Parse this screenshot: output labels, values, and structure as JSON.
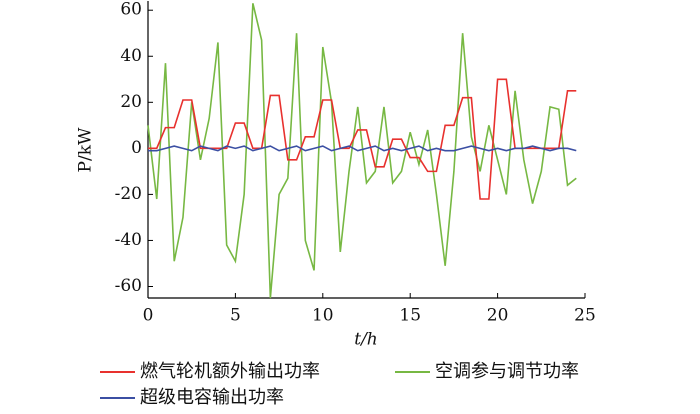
{
  "chart_data": {
    "type": "line",
    "x_label": "t/h",
    "y_label": "P/kW",
    "x": [
      0,
      0.5,
      1,
      1.5,
      2,
      2.5,
      3,
      3.5,
      4,
      4.5,
      5,
      5.5,
      6,
      6.5,
      7,
      7.5,
      8,
      8.5,
      9,
      9.5,
      10,
      10.5,
      11,
      11.5,
      12,
      12.5,
      13,
      13.5,
      14,
      14.5,
      15,
      15.5,
      16,
      16.5,
      17,
      17.5,
      18,
      18.5,
      19,
      19.5,
      20,
      20.5,
      21,
      21.5,
      22,
      22.5,
      23,
      23.5,
      24,
      24.5
    ],
    "series": [
      {
        "name": "燃气轮机额外输出功率",
        "color": "#e8312e",
        "values": [
          0,
          0,
          9,
          9,
          21,
          21,
          0,
          0,
          0,
          0,
          11,
          11,
          0,
          0,
          23,
          23,
          -5,
          -5,
          5,
          5,
          21,
          21,
          0,
          0,
          8,
          8,
          -8,
          -8,
          4,
          4,
          -4,
          -4,
          -10,
          -10,
          10,
          10,
          22,
          22,
          -22,
          -22,
          30,
          30,
          0,
          0,
          0,
          0,
          0,
          0,
          25,
          25
        ]
      },
      {
        "name": "空调参与调节功率",
        "color": "#77b843",
        "values": [
          10,
          -22,
          37,
          -49,
          -30,
          20,
          -5,
          13,
          46,
          -42,
          -49,
          -20,
          63,
          47,
          -65,
          -20,
          -13,
          50,
          -40,
          -53,
          44,
          20,
          -45,
          -10,
          18,
          -15,
          -10,
          18,
          -15,
          -10,
          7,
          -7,
          8,
          -20,
          -51,
          -10,
          50,
          5,
          -10,
          10,
          -5,
          -20,
          25,
          -5,
          -24,
          -10,
          18,
          17,
          -16,
          -13
        ]
      },
      {
        "name": "超级电容输出功率",
        "color": "#3b4fa3",
        "values": [
          -1,
          -1,
          0,
          1,
          0,
          -1,
          1,
          0,
          -1,
          1,
          0,
          1,
          -1,
          0,
          1,
          -1,
          0,
          1,
          -1,
          0,
          1,
          -1,
          0,
          1,
          -1,
          0,
          1,
          -1,
          0,
          -1,
          0,
          1,
          -1,
          0,
          -1,
          -1,
          0,
          1,
          0,
          -1,
          0,
          -1,
          0,
          0,
          1,
          0,
          -1,
          0,
          0,
          -1
        ]
      }
    ],
    "xlim": [
      0,
      25
    ],
    "ylim": [
      -65,
      64
    ],
    "xticks": [
      0,
      5,
      10,
      15,
      20,
      25
    ],
    "yticks": [
      -60,
      -40,
      -20,
      0,
      20,
      40,
      60
    ]
  }
}
